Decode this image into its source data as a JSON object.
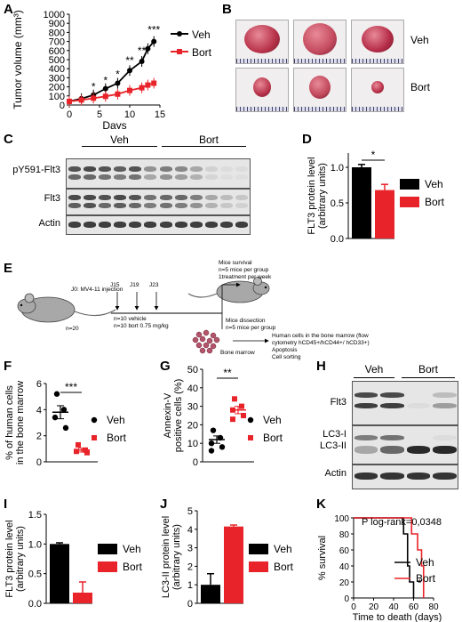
{
  "panels": {
    "A": {
      "label": "A",
      "chart_data": {
        "type": "line",
        "ylabel": "Tumor volume (mm³)",
        "xlabel": "Days",
        "xticks": [
          0,
          5,
          10,
          15
        ],
        "yticks": [
          0,
          100,
          200,
          300,
          400,
          500,
          600,
          700,
          800,
          900,
          1000
        ],
        "xlim": [
          0,
          15
        ],
        "ylim": [
          0,
          1000
        ],
        "series": [
          {
            "name": "Veh",
            "color": "#000000",
            "marker": "circle",
            "x": [
              0,
              2,
              4,
              6,
              8,
              10,
              12,
              13,
              14
            ],
            "y": [
              40,
              70,
              110,
              180,
              240,
              380,
              480,
              620,
              700
            ]
          },
          {
            "name": "Bort",
            "color": "#e8242a",
            "marker": "square",
            "x": [
              0,
              2,
              4,
              6,
              8,
              10,
              12,
              13,
              14
            ],
            "y": [
              40,
              55,
              75,
              95,
              120,
              160,
              190,
              220,
              240
            ]
          }
        ],
        "annotations": [
          {
            "text": "*",
            "x": 4,
            "y": 160
          },
          {
            "text": "*",
            "x": 6,
            "y": 230
          },
          {
            "text": "*",
            "x": 8,
            "y": 300
          },
          {
            "text": "**",
            "x": 10,
            "y": 450
          },
          {
            "text": "**",
            "x": 12,
            "y": 560
          },
          {
            "text": "***",
            "x": 14,
            "y": 790
          }
        ]
      }
    },
    "B": {
      "label": "B",
      "row_labels": [
        "Veh",
        "Bort"
      ]
    },
    "C": {
      "label": "C",
      "group_labels": [
        "Veh",
        "Bort"
      ],
      "rows": [
        "pY591-Flt3",
        "Flt3",
        "Actin"
      ]
    },
    "D": {
      "label": "D",
      "chart_data": {
        "type": "bar",
        "ylabel": "FLT3 protein level (arbitrary units)",
        "categories": [
          "Veh",
          "Bort"
        ],
        "values": [
          1.0,
          0.68
        ],
        "errors": [
          0.04,
          0.08
        ],
        "colors": [
          "#000000",
          "#e8242a"
        ],
        "yticks": [
          "0.0",
          "0.5",
          "1.0"
        ],
        "ylim": [
          0,
          1.2
        ],
        "annotations": [
          "*"
        ]
      }
    },
    "E": {
      "label": "E",
      "injection": "J0: MV4-11 injection",
      "n_total": "n=20",
      "days": [
        "J15",
        "J19",
        "J23"
      ],
      "groups": [
        "n=10 vehicle",
        "n=10 bort 0.75 mg/kg"
      ],
      "survival": [
        "Mice survival",
        "n=5 mice per group",
        "1treatment per week"
      ],
      "dissection": [
        "Mice dissection",
        "n=5 mice per group"
      ],
      "bone_marrow": "Bone marrow",
      "analysis": [
        "Human cells in the bone marrow (flow",
        "cytometry hCD45+/hCD44+/ hCD33+)",
        "Apoptosis",
        "Cell sorting"
      ]
    },
    "F": {
      "label": "F",
      "chart_data": {
        "type": "scatter",
        "ylabel": "% of human cells in the bone marrow",
        "series": [
          {
            "name": "Veh",
            "color": "#000000",
            "y": [
              5.2,
              4.0,
              3.4,
              2.6
            ],
            "mean": 3.8,
            "sem": 0.5
          },
          {
            "name": "Bort",
            "color": "#e8242a",
            "y": [
              1.3,
              0.9,
              0.8,
              0.7
            ],
            "mean": 0.9,
            "sem": 0.15
          }
        ],
        "yticks": [
          0,
          2,
          4,
          6
        ],
        "ylim": [
          0,
          6
        ],
        "annotations": [
          "***"
        ]
      }
    },
    "G": {
      "label": "G",
      "chart_data": {
        "type": "scatter",
        "ylabel": "Annexin-V positive cells (%)",
        "series": [
          {
            "name": "Veh",
            "color": "#000000",
            "y": [
              17,
              13,
              10,
              8,
              6
            ],
            "mean": 12,
            "sem": 2
          },
          {
            "name": "Bort",
            "color": "#e8242a",
            "y": [
              34,
              30,
              28,
              25,
              23
            ],
            "mean": 28,
            "sem": 2
          }
        ],
        "yticks": [
          0,
          10,
          20,
          30,
          40,
          50
        ],
        "ylim": [
          0,
          50
        ],
        "annotations": [
          "**"
        ]
      }
    },
    "H": {
      "label": "H",
      "group_labels": [
        "Veh",
        "Bort"
      ],
      "rows": [
        "Flt3",
        "LC3-I",
        "LC3-II",
        "Actin"
      ]
    },
    "I": {
      "label": "I",
      "chart_data": {
        "type": "bar",
        "ylabel": "FLT3 protein level (arbitrary units)",
        "categories": [
          "Veh",
          "Bort"
        ],
        "values": [
          1.0,
          0.18
        ],
        "errors": [
          0.02,
          0.18
        ],
        "colors": [
          "#000000",
          "#e8242a"
        ],
        "yticks": [
          "0.0",
          "0.5",
          "1.0",
          "1.5"
        ],
        "ylim": [
          0,
          1.5
        ]
      }
    },
    "J": {
      "label": "J",
      "chart_data": {
        "type": "bar",
        "ylabel": "LC3-II protein level (arbitrary units)",
        "categories": [
          "Veh",
          "Bort"
        ],
        "values": [
          1.0,
          4.15
        ],
        "errors": [
          0.6,
          0.08
        ],
        "colors": [
          "#000000",
          "#e8242a"
        ],
        "yticks": [
          "0",
          "1",
          "2",
          "3",
          "4",
          "5"
        ],
        "ylim": [
          0,
          5
        ]
      }
    },
    "K": {
      "label": "K",
      "chart_data": {
        "type": "line",
        "ylabel": "% survival",
        "xlabel": "Time to death (days)",
        "xticks": [
          0,
          20,
          40,
          60,
          80
        ],
        "yticks": [
          0,
          20,
          40,
          60,
          80,
          100
        ],
        "xlim": [
          0,
          80
        ],
        "ylim": [
          0,
          100
        ],
        "stat": "P log-rank=0,0348",
        "series": [
          {
            "name": "Veh",
            "color": "#000000",
            "x": [
              0,
              50,
              50,
              54,
              54,
              56,
              56,
              60,
              60
            ],
            "y": [
              100,
              100,
              80,
              80,
              40,
              40,
              20,
              20,
              0
            ]
          },
          {
            "name": "Bort",
            "color": "#e8242a",
            "x": [
              0,
              58,
              58,
              64,
              64,
              68,
              68,
              70,
              70
            ],
            "y": [
              100,
              100,
              80,
              80,
              60,
              60,
              40,
              40,
              0
            ]
          }
        ],
        "annotations": [
          "*"
        ]
      }
    }
  }
}
